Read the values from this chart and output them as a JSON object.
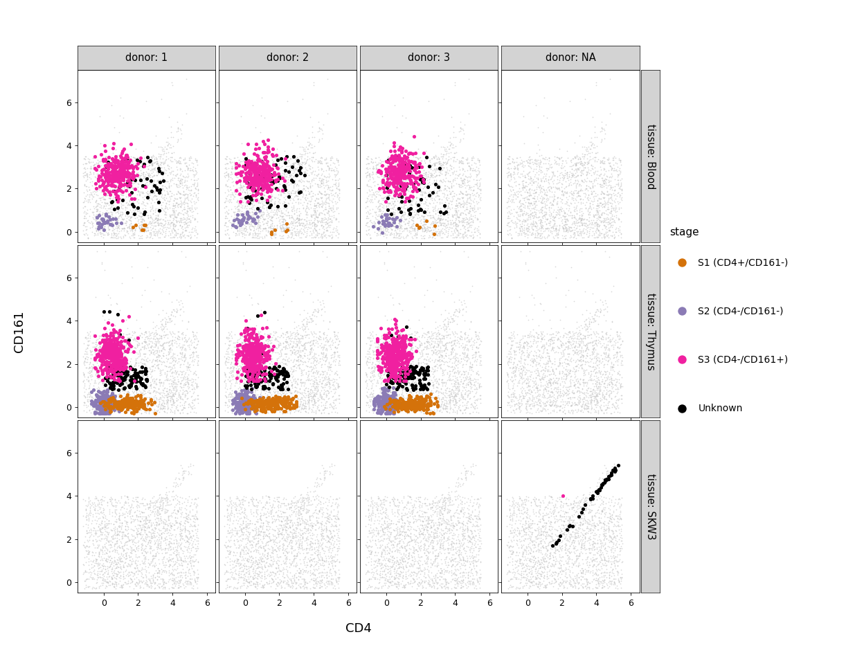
{
  "donors": [
    "1",
    "2",
    "3",
    "NA"
  ],
  "tissues": [
    "Blood",
    "Thymus",
    "SKW3"
  ],
  "col_labels": [
    "donor: 1",
    "donor: 2",
    "donor: 3",
    "donor: NA"
  ],
  "row_labels": [
    "tissue: Blood",
    "tissue: Thymus",
    "tissue: SKW3"
  ],
  "stage_colors": {
    "S1": "#D4720A",
    "S2": "#8B7BB5",
    "S3": "#F020A0",
    "Unknown": "#000000",
    "background": "#BEBEBE"
  },
  "stage_labels": {
    "S1": "S1 (CD4+/CD161-)",
    "S2": "S2 (CD4-/CD161-)",
    "S3": "S3 (CD4-/CD161+)",
    "Unknown": "Unknown"
  },
  "xlabel": "CD4",
  "ylabel": "CD161",
  "xlim": [
    -1.5,
    6.5
  ],
  "ylim": [
    -0.5,
    7.5
  ],
  "xticks": [
    0,
    2,
    4,
    6
  ],
  "yticks": [
    0,
    2,
    4,
    6
  ],
  "legend_title": "stage",
  "facet_label_bg": "#D3D3D3",
  "background_color": "#FFFFFF",
  "panel_bg": "#FFFFFF"
}
